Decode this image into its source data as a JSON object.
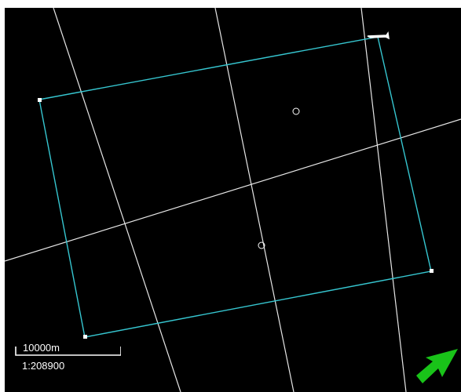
{
  "map": {
    "background": "#000000",
    "boundary_color": "#36c6d0",
    "line_color": "#e6e6e6",
    "vertex_color": "#ffffff"
  },
  "scale": {
    "distance_label": "10000m",
    "ratio_label": "1:208900"
  },
  "north_arrow": {
    "icon": "north-arrow-icon",
    "color": "#19c319"
  }
}
